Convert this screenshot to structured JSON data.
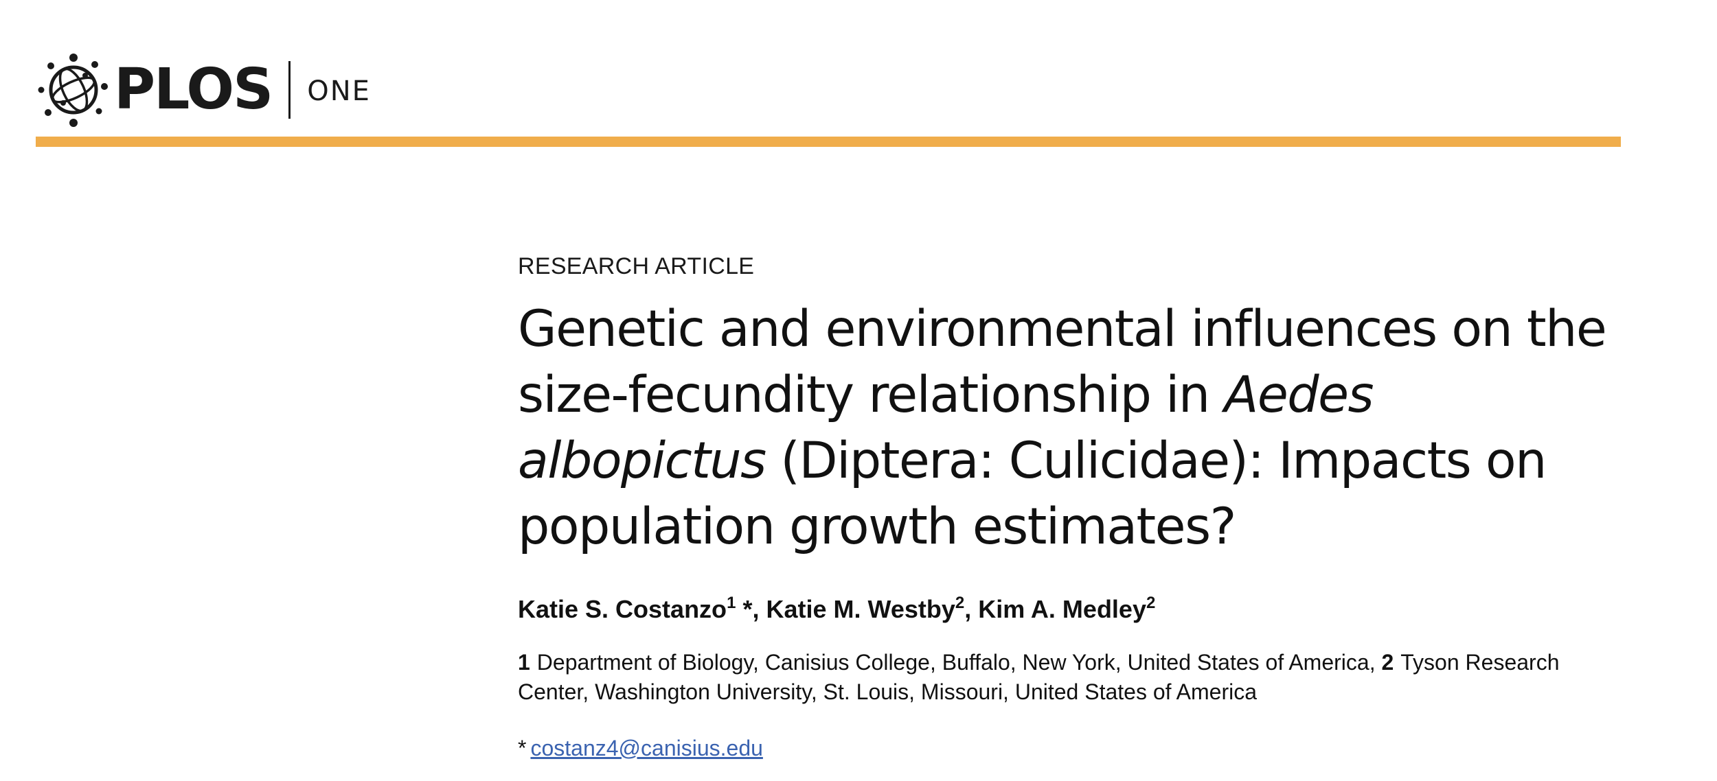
{
  "header": {
    "logo_text": "PLOS",
    "journal": "ONE",
    "rule_color": "#f0ad4b",
    "logo_icon": "plos-globe-icon"
  },
  "article": {
    "type": "RESEARCH ARTICLE",
    "title_part1": "Genetic and environmental influences on the size-fecundity relationship in ",
    "title_species": "Aedes albopictus",
    "title_part2": " (Diptera: Culicidae): Impacts on population growth estimates?",
    "authors": [
      {
        "name": "Katie S. Costanzo",
        "affiliation": "1",
        "corresponding": "*"
      },
      {
        "name": "Katie M. Westby",
        "affiliation": "2"
      },
      {
        "name": "Kim A. Medley",
        "affiliation": "2"
      }
    ],
    "affiliations": [
      {
        "num": "1",
        "text": "Department of Biology, Canisius College, Buffalo, New York, United States of America,"
      },
      {
        "num": "2",
        "text": "Tyson Research Center, Washington University, St. Louis, Missouri, United States of America"
      }
    ],
    "correspondence": {
      "marker": "*",
      "email": "costanz4@canisius.edu"
    }
  }
}
